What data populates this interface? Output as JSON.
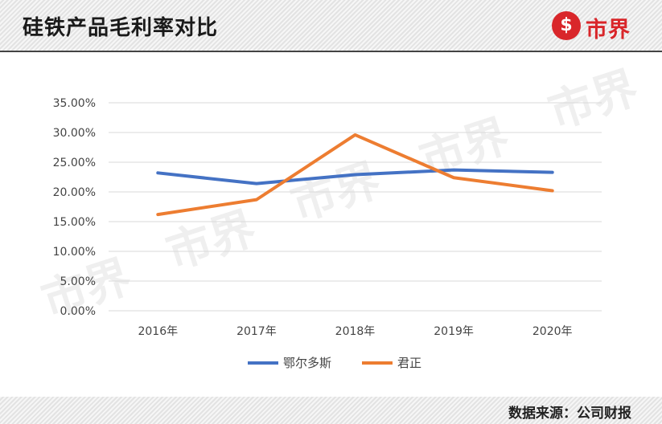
{
  "header": {
    "title": "硅铁产品毛利率对比"
  },
  "logo": {
    "mark": "$",
    "text": "市界"
  },
  "watermark": "市界",
  "footer": {
    "source": "数据来源：公司财报"
  },
  "colors": {
    "series_1": "#4472C4",
    "series_2": "#ED7D31",
    "grid": "#d9d9d9",
    "brand": "#d9262a"
  },
  "chart_data": {
    "type": "line",
    "title": "",
    "xlabel": "",
    "ylabel": "",
    "categories": [
      "2016年",
      "2017年",
      "2018年",
      "2019年",
      "2020年"
    ],
    "y_ticks": [
      "0.00%",
      "5.00%",
      "10.00%",
      "15.00%",
      "20.00%",
      "25.00%",
      "30.00%",
      "35.00%"
    ],
    "ylim": [
      0,
      35
    ],
    "grid": true,
    "legend_position": "bottom",
    "series": [
      {
        "name": "鄂尔多斯",
        "values": [
          23.2,
          21.4,
          22.9,
          23.7,
          23.3
        ]
      },
      {
        "name": "君正",
        "values": [
          16.2,
          18.7,
          29.6,
          22.4,
          20.2
        ]
      }
    ]
  }
}
